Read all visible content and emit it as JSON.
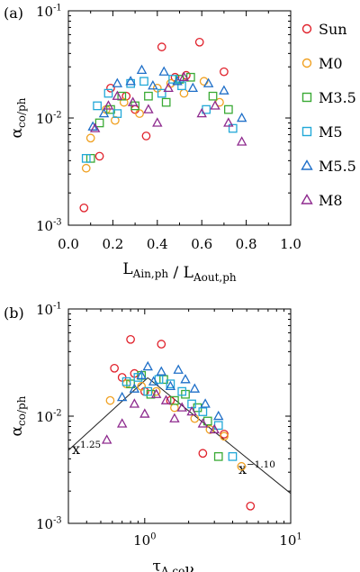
{
  "chart_data": [
    {
      "panel_label": "(a)",
      "type": "scatter",
      "xscale": "linear",
      "yscale": "log",
      "xlim": [
        0.0,
        1.0
      ],
      "ylim": [
        0.001,
        0.1
      ],
      "xticks": [
        0.0,
        0.2,
        0.4,
        0.6,
        0.8,
        1.0
      ],
      "xtick_labels": [
        "0.0",
        "0.2",
        "0.4",
        "0.6",
        "0.8",
        "1.0"
      ],
      "yticks": [
        0.001,
        0.01,
        0.1
      ],
      "ytick_labels": [
        {
          "base": "10",
          "exp": "-3"
        },
        {
          "base": "10",
          "exp": "-2"
        },
        {
          "base": "10",
          "exp": "-1"
        }
      ],
      "xlabel": {
        "parts": [
          {
            "t": "L",
            "sub": "Ain,ph"
          },
          {
            "t": " / L",
            "sub": "Aout,ph"
          }
        ]
      },
      "ylabel": {
        "t": "α",
        "sub": "co/ph"
      },
      "legend_position": "right",
      "series": [
        {
          "name": "Sun",
          "marker": "circle",
          "color": "#e0202a",
          "x": [
            0.07,
            0.14,
            0.19,
            0.26,
            0.3,
            0.35,
            0.42,
            0.48,
            0.53,
            0.59,
            0.7
          ],
          "y": [
            0.00145,
            0.0044,
            0.019,
            0.016,
            0.012,
            0.0068,
            0.046,
            0.024,
            0.025,
            0.051,
            0.027
          ]
        },
        {
          "name": "M0",
          "marker": "circle",
          "color": "#f0a020",
          "x": [
            0.08,
            0.1,
            0.17,
            0.21,
            0.25,
            0.32,
            0.4,
            0.46,
            0.52,
            0.61,
            0.68
          ],
          "y": [
            0.0034,
            0.0065,
            0.012,
            0.0095,
            0.014,
            0.011,
            0.019,
            0.021,
            0.017,
            0.022,
            0.014
          ]
        },
        {
          "name": "M3.5",
          "marker": "square",
          "color": "#3aaa35",
          "x": [
            0.1,
            0.14,
            0.19,
            0.24,
            0.3,
            0.36,
            0.44,
            0.5,
            0.55,
            0.65,
            0.72
          ],
          "y": [
            0.0042,
            0.009,
            0.012,
            0.016,
            0.013,
            0.016,
            0.014,
            0.023,
            0.024,
            0.016,
            0.012
          ]
        },
        {
          "name": "M5",
          "marker": "square",
          "color": "#22a8d8",
          "x": [
            0.08,
            0.13,
            0.18,
            0.22,
            0.28,
            0.34,
            0.42,
            0.47,
            0.51,
            0.62,
            0.74
          ],
          "y": [
            0.0042,
            0.013,
            0.017,
            0.011,
            0.021,
            0.022,
            0.017,
            0.023,
            0.02,
            0.012,
            0.008
          ]
        },
        {
          "name": "M5.5",
          "marker": "triangle",
          "color": "#1f6fc8",
          "x": [
            0.11,
            0.16,
            0.22,
            0.28,
            0.33,
            0.38,
            0.43,
            0.49,
            0.56,
            0.63,
            0.7,
            0.78
          ],
          "y": [
            0.0083,
            0.011,
            0.021,
            0.022,
            0.028,
            0.02,
            0.027,
            0.022,
            0.019,
            0.021,
            0.018,
            0.01
          ]
        },
        {
          "name": "M8",
          "marker": "triangle",
          "color": "#8e2a8e",
          "x": [
            0.12,
            0.18,
            0.22,
            0.29,
            0.36,
            0.4,
            0.45,
            0.52,
            0.6,
            0.66,
            0.72,
            0.78
          ],
          "y": [
            0.008,
            0.013,
            0.016,
            0.014,
            0.012,
            0.009,
            0.019,
            0.024,
            0.011,
            0.013,
            0.009,
            0.006
          ]
        }
      ]
    },
    {
      "panel_label": "(b)",
      "type": "scatter",
      "xscale": "log",
      "yscale": "log",
      "xlim": [
        0.3,
        10
      ],
      "ylim": [
        0.001,
        0.1
      ],
      "xticks": [
        1,
        10
      ],
      "xtick_labels": [
        {
          "base": "10",
          "exp": "0"
        },
        {
          "base": "10",
          "exp": "1"
        }
      ],
      "yticks": [
        0.001,
        0.01,
        0.1
      ],
      "ytick_labels": [
        {
          "base": "10",
          "exp": "-3"
        },
        {
          "base": "10",
          "exp": "-2"
        },
        {
          "base": "10",
          "exp": "-1"
        }
      ],
      "xlabel": {
        "parts": [
          {
            "t": "τ",
            "sub": "A,co"
          },
          {
            "t": "ν",
            "sub": "ac"
          }
        ]
      },
      "ylabel": {
        "t": "α",
        "sub": "co/ph"
      },
      "fit_lines": [
        {
          "label": {
            "base": "x",
            "exp": "1.25"
          },
          "x": [
            0.3,
            1.05
          ],
          "y": [
            0.0048,
            0.0228
          ]
        },
        {
          "label": {
            "base": "x",
            "exp": "−1.10"
          },
          "x": [
            1.05,
            10
          ],
          "y": [
            0.0228,
            0.0019
          ]
        }
      ],
      "series": [
        {
          "name": "Sun",
          "marker": "circle",
          "color": "#e0202a",
          "x": [
            0.62,
            0.7,
            0.8,
            0.85,
            1.0,
            1.3,
            1.5,
            2.5,
            3.5,
            5.3
          ],
          "y": [
            0.028,
            0.023,
            0.052,
            0.025,
            0.017,
            0.047,
            0.014,
            0.0045,
            0.0068,
            0.00145
          ]
        },
        {
          "name": "M0",
          "marker": "circle",
          "color": "#f0a020",
          "x": [
            0.58,
            0.75,
            0.95,
            1.2,
            1.6,
            2.2,
            2.8,
            3.5,
            4.6
          ],
          "y": [
            0.014,
            0.02,
            0.019,
            0.017,
            0.012,
            0.0095,
            0.0075,
            0.0065,
            0.0034
          ]
        },
        {
          "name": "M3.5",
          "marker": "square",
          "color": "#3aaa35",
          "x": [
            0.8,
            0.95,
            1.1,
            1.35,
            1.6,
            1.9,
            2.3,
            2.7,
            3.2
          ],
          "y": [
            0.02,
            0.024,
            0.016,
            0.022,
            0.014,
            0.016,
            0.012,
            0.009,
            0.0042
          ]
        },
        {
          "name": "M5",
          "marker": "square",
          "color": "#22a8d8",
          "x": [
            0.75,
            0.9,
            1.05,
            1.25,
            1.5,
            1.8,
            2.1,
            2.5,
            3.2,
            4.0
          ],
          "y": [
            0.021,
            0.023,
            0.017,
            0.022,
            0.02,
            0.017,
            0.013,
            0.011,
            0.0082,
            0.0042
          ]
        },
        {
          "name": "M5.5",
          "marker": "triangle",
          "color": "#1f6fc8",
          "x": [
            0.7,
            0.85,
            0.95,
            1.05,
            1.15,
            1.3,
            1.5,
            1.7,
            1.9,
            2.2,
            2.6,
            3.2
          ],
          "y": [
            0.015,
            0.018,
            0.024,
            0.029,
            0.021,
            0.026,
            0.019,
            0.027,
            0.022,
            0.018,
            0.013,
            0.01
          ]
        },
        {
          "name": "M8",
          "marker": "triangle",
          "color": "#8e2a8e",
          "x": [
            0.55,
            0.7,
            0.85,
            1.0,
            1.2,
            1.4,
            1.6,
            1.8,
            2.1,
            2.5,
            3.0
          ],
          "y": [
            0.006,
            0.0085,
            0.013,
            0.0105,
            0.016,
            0.014,
            0.0095,
            0.012,
            0.011,
            0.0085,
            0.0075
          ]
        }
      ]
    }
  ]
}
